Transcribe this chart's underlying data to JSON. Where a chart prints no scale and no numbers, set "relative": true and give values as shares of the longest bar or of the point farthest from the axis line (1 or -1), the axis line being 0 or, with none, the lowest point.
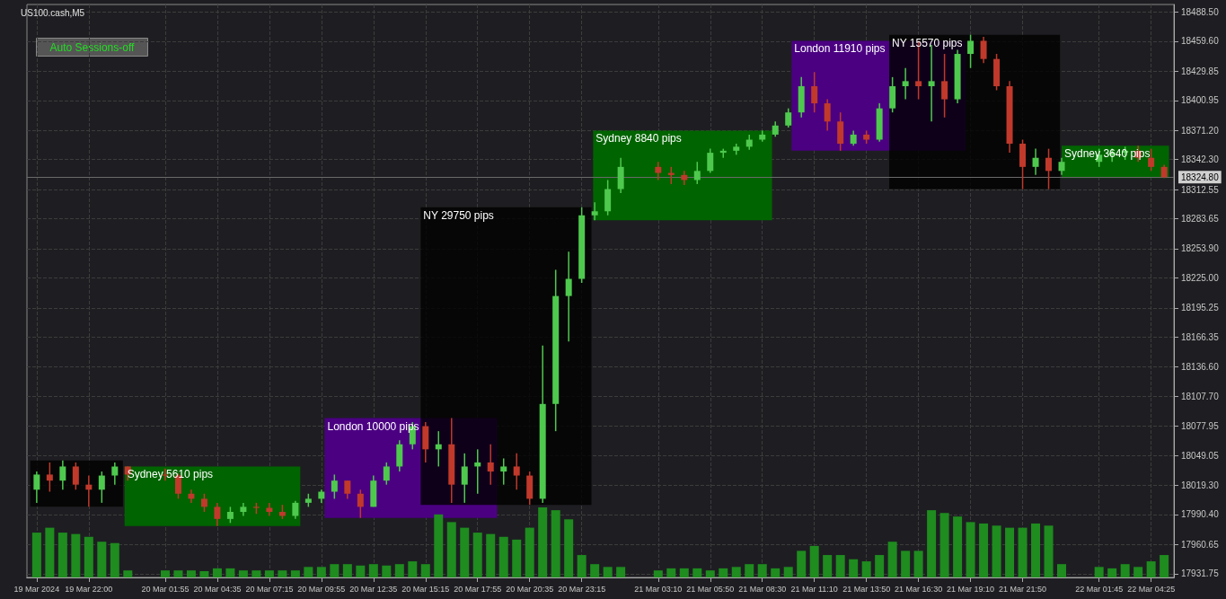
{
  "chart_data": [
    {
      "type": "candlestick",
      "title": "US100.cash,M5",
      "x": [
        "2024-03-19T19:20",
        "2024-03-19T20:00",
        "2024-03-19T20:40",
        "2024-03-19T21:20",
        "2024-03-19T22:00",
        "2024-03-19T22:40",
        "2024-03-19T23:20",
        "2024-03-20T00:00",
        "2024-03-20T01:55",
        "2024-03-20T02:35",
        "2024-03-20T03:15",
        "2024-03-20T03:55",
        "2024-03-20T04:35",
        "2024-03-20T05:15",
        "2024-03-20T05:55",
        "2024-03-20T06:35",
        "2024-03-20T07:15",
        "2024-03-20T07:55",
        "2024-03-20T08:35",
        "2024-03-20T09:15",
        "2024-03-20T09:55",
        "2024-03-20T10:35",
        "2024-03-20T11:15",
        "2024-03-20T11:55",
        "2024-03-20T12:35",
        "2024-03-20T13:15",
        "2024-03-20T13:55",
        "2024-03-20T14:35",
        "2024-03-20T15:15",
        "2024-03-20T15:55",
        "2024-03-20T16:35",
        "2024-03-20T17:15",
        "2024-03-20T17:55",
        "2024-03-20T18:35",
        "2024-03-20T19:15",
        "2024-03-20T19:55",
        "2024-03-20T20:35",
        "2024-03-20T21:15",
        "2024-03-20T21:55",
        "2024-03-20T22:35",
        "2024-03-20T23:15",
        "2024-03-20T23:55",
        "2024-03-21T00:35",
        "2024-03-21T01:15",
        "2024-03-21T03:10",
        "2024-03-21T03:50",
        "2024-03-21T04:30",
        "2024-03-21T05:10",
        "2024-03-21T05:50",
        "2024-03-21T06:30",
        "2024-03-21T07:10",
        "2024-03-21T07:50",
        "2024-03-21T08:30",
        "2024-03-21T09:10",
        "2024-03-21T09:50",
        "2024-03-21T10:30",
        "2024-03-21T11:10",
        "2024-03-21T11:50",
        "2024-03-21T12:30",
        "2024-03-21T13:10",
        "2024-03-21T13:50",
        "2024-03-21T14:30",
        "2024-03-21T15:10",
        "2024-03-21T15:50",
        "2024-03-21T16:30",
        "2024-03-21T17:10",
        "2024-03-21T17:50",
        "2024-03-21T18:30",
        "2024-03-21T19:10",
        "2024-03-21T19:50",
        "2024-03-21T20:30",
        "2024-03-21T21:10",
        "2024-03-21T21:50",
        "2024-03-21T22:30",
        "2024-03-21T23:10",
        "2024-03-21T23:50",
        "2024-03-22T01:45",
        "2024-03-22T02:25",
        "2024-03-22T03:05",
        "2024-03-22T03:45",
        "2024-03-22T04:25",
        "2024-03-22T05:05"
      ],
      "ohlc": [
        [
          18015,
          18033,
          18002,
          18030
        ],
        [
          18030,
          18042,
          18013,
          18024
        ],
        [
          18024,
          18044,
          18015,
          18038
        ],
        [
          18038,
          18042,
          18015,
          18020
        ],
        [
          18020,
          18029,
          17998,
          18015
        ],
        [
          18015,
          18033,
          18002,
          18029
        ],
        [
          18029,
          18042,
          18020,
          18038
        ],
        [
          18038,
          18038,
          18024,
          18030
        ],
        [
          18030,
          18036,
          18024,
          18029
        ],
        [
          18029,
          18031,
          18006,
          18011
        ],
        [
          18011,
          18015,
          18002,
          18006
        ],
        [
          18006,
          18011,
          17993,
          17998
        ],
        [
          17998,
          18002,
          17979,
          17986
        ],
        [
          17986,
          17998,
          17982,
          17993
        ],
        [
          17993,
          18002,
          17989,
          17998
        ],
        [
          17998,
          18002,
          17991,
          17997
        ],
        [
          17997,
          18002,
          17989,
          17993
        ],
        [
          17993,
          18000,
          17986,
          17989
        ],
        [
          17989,
          18004,
          17986,
          18002
        ],
        [
          18002,
          18011,
          17998,
          18006
        ],
        [
          18006,
          18015,
          18002,
          18013
        ],
        [
          18013,
          18030,
          18006,
          18024
        ],
        [
          18024,
          18024,
          18006,
          18011
        ],
        [
          18011,
          18015,
          17987,
          17998
        ],
        [
          17998,
          18029,
          17998,
          18024
        ],
        [
          18024,
          18042,
          18020,
          18038
        ],
        [
          18038,
          18064,
          18033,
          18060
        ],
        [
          18060,
          18082,
          18055,
          18078
        ],
        [
          18078,
          18082,
          18042,
          18055
        ],
        [
          18055,
          18073,
          18038,
          18060
        ],
        [
          18060,
          18086,
          18002,
          18020
        ],
        [
          18020,
          18051,
          18002,
          18038
        ],
        [
          18038,
          18055,
          18011,
          18042
        ],
        [
          18042,
          18060,
          18020,
          18033
        ],
        [
          18033,
          18046,
          18020,
          18038
        ],
        [
          18038,
          18051,
          18015,
          18029
        ],
        [
          18029,
          18033,
          18000,
          18006
        ],
        [
          18006,
          18158,
          18002,
          18100
        ],
        [
          18100,
          18233,
          18073,
          18207
        ],
        [
          18207,
          18251,
          18162,
          18224
        ],
        [
          18224,
          18295,
          18220,
          18287
        ],
        [
          18287,
          18300,
          18282,
          18291
        ],
        [
          18291,
          18322,
          18287,
          18313
        ],
        [
          18313,
          18344,
          18309,
          18335
        ],
        [
          18335,
          18340,
          18322,
          18329
        ],
        [
          18329,
          18335,
          18318,
          18327
        ],
        [
          18327,
          18331,
          18317,
          18322
        ],
        [
          18322,
          18340,
          18318,
          18331
        ],
        [
          18331,
          18353,
          18329,
          18349
        ],
        [
          18349,
          18353,
          18344,
          18351
        ],
        [
          18351,
          18358,
          18347,
          18355
        ],
        [
          18355,
          18367,
          18352,
          18362
        ],
        [
          18362,
          18371,
          18360,
          18367
        ],
        [
          18367,
          18380,
          18365,
          18376
        ],
        [
          18376,
          18393,
          18374,
          18389
        ],
        [
          18389,
          18424,
          18384,
          18415
        ],
        [
          18415,
          18429,
          18389,
          18398
        ],
        [
          18398,
          18402,
          18371,
          18380
        ],
        [
          18380,
          18389,
          18351,
          18358
        ],
        [
          18358,
          18371,
          18356,
          18367
        ],
        [
          18367,
          18371,
          18358,
          18362
        ],
        [
          18362,
          18398,
          18360,
          18393
        ],
        [
          18393,
          18424,
          18389,
          18415
        ],
        [
          18415,
          18433,
          18402,
          18420
        ],
        [
          18420,
          18460,
          18402,
          18415
        ],
        [
          18415,
          18456,
          18380,
          18420
        ],
        [
          18420,
          18447,
          18384,
          18402
        ],
        [
          18402,
          18451,
          18398,
          18447
        ],
        [
          18447,
          18466,
          18433,
          18460
        ],
        [
          18460,
          18464,
          18438,
          18442
        ],
        [
          18442,
          18447,
          18411,
          18415
        ],
        [
          18415,
          18420,
          18349,
          18358
        ],
        [
          18358,
          18362,
          18313,
          18335
        ],
        [
          18335,
          18353,
          18327,
          18344
        ],
        [
          18344,
          18353,
          18313,
          18331
        ],
        [
          18331,
          18344,
          18327,
          18340
        ],
        [
          18340,
          18353,
          18335,
          18347
        ],
        [
          18347,
          18353,
          18340,
          18349
        ],
        [
          18349,
          18355,
          18342,
          18351
        ],
        [
          18351,
          18356,
          18340,
          18344
        ],
        [
          18344,
          18353,
          18331,
          18335
        ],
        [
          18335,
          18337,
          18324,
          18324.8
        ]
      ],
      "colors": [
        "#4ec94e",
        "#c0392b",
        "#4ec94e",
        "#c0392b",
        "#c0392b",
        "#4ec94e",
        "#4ec94e",
        "#c0392b",
        "#c0392b",
        "#c0392b",
        "#c0392b",
        "#c0392b",
        "#c0392b",
        "#4ec94e",
        "#4ec94e",
        "#c0392b",
        "#c0392b",
        "#c0392b",
        "#4ec94e",
        "#4ec94e",
        "#4ec94e",
        "#4ec94e",
        "#c0392b",
        "#c0392b",
        "#4ec94e",
        "#4ec94e",
        "#4ec94e",
        "#4ec94e",
        "#c0392b",
        "#4ec94e",
        "#c0392b",
        "#4ec94e",
        "#4ec94e",
        "#c0392b",
        "#4ec94e",
        "#c0392b",
        "#c0392b",
        "#4ec94e",
        "#4ec94e",
        "#4ec94e",
        "#4ec94e",
        "#4ec94e",
        "#4ec94e",
        "#4ec94e",
        "#c0392b",
        "#c0392b",
        "#c0392b",
        "#4ec94e",
        "#4ec94e",
        "#4ec94e",
        "#4ec94e",
        "#4ec94e",
        "#4ec94e",
        "#4ec94e",
        "#4ec94e",
        "#4ec94e",
        "#c0392b",
        "#c0392b",
        "#c0392b",
        "#4ec94e",
        "#c0392b",
        "#4ec94e",
        "#4ec94e",
        "#4ec94e",
        "#c0392b",
        "#4ec94e",
        "#c0392b",
        "#4ec94e",
        "#4ec94e",
        "#c0392b",
        "#c0392b",
        "#c0392b",
        "#c0392b",
        "#4ec94e",
        "#c0392b",
        "#4ec94e",
        "#4ec94e",
        "#4ec94e",
        "#4ec94e",
        "#c0392b",
        "#c0392b",
        "#c0392b"
      ],
      "xlim": [
        "2024-03-19T18:50",
        "2024-03-22T05:35"
      ],
      "xticks": [
        {
          "value": "2024-03-19T19:20",
          "label": "19 Mar 2024"
        },
        {
          "value": "2024-03-19T22:00",
          "label": "19 Mar 22:00"
        },
        {
          "value": "2024-03-20T01:55",
          "label": "20 Mar 01:55"
        },
        {
          "value": "2024-03-20T04:35",
          "label": "20 Mar 04:35"
        },
        {
          "value": "2024-03-20T07:15",
          "label": "20 Mar 07:15"
        },
        {
          "value": "2024-03-20T09:55",
          "label": "20 Mar 09:55"
        },
        {
          "value": "2024-03-20T12:35",
          "label": "20 Mar 12:35"
        },
        {
          "value": "2024-03-20T15:15",
          "label": "20 Mar 15:15"
        },
        {
          "value": "2024-03-20T17:55",
          "label": "20 Mar 17:55"
        },
        {
          "value": "2024-03-20T20:35",
          "label": "20 Mar 20:35"
        },
        {
          "value": "2024-03-20T23:15",
          "label": "20 Mar 23:15"
        },
        {
          "value": "2024-03-21T03:10",
          "label": "21 Mar 03:10"
        },
        {
          "value": "2024-03-21T05:50",
          "label": "21 Mar 05:50"
        },
        {
          "value": "2024-03-21T08:30",
          "label": "21 Mar 08:30"
        },
        {
          "value": "2024-03-21T11:10",
          "label": "21 Mar 11:10"
        },
        {
          "value": "2024-03-21T13:50",
          "label": "21 Mar 13:50"
        },
        {
          "value": "2024-03-21T16:30",
          "label": "21 Mar 16:30"
        },
        {
          "value": "2024-03-21T19:10",
          "label": "21 Mar 19:10"
        },
        {
          "value": "2024-03-21T21:50",
          "label": "21 Mar 21:50"
        },
        {
          "value": "2024-03-22T01:45",
          "label": "22 Mar 01:45"
        },
        {
          "value": "2024-03-22T04:25",
          "label": "22 Mar 04:25"
        }
      ],
      "ylim": [
        17928,
        18496
      ],
      "yticks": [
        {
          "value": 17931.75,
          "label": "17931.75"
        },
        {
          "value": 17960.65,
          "label": "17960.65"
        },
        {
          "value": 17990.4,
          "label": "17990.40"
        },
        {
          "value": 18019.3,
          "label": "18019.30"
        },
        {
          "value": 18049.05,
          "label": "18049.05"
        },
        {
          "value": 18077.95,
          "label": "18077.95"
        },
        {
          "value": 18107.7,
          "label": "18107.70"
        },
        {
          "value": 18136.6,
          "label": "18136.60"
        },
        {
          "value": 18166.35,
          "label": "18166.35"
        },
        {
          "value": 18195.25,
          "label": "18195.25"
        },
        {
          "value": 18225,
          "label": "18225.00"
        },
        {
          "value": 18253.9,
          "label": "18253.90"
        },
        {
          "value": 18283.65,
          "label": "18283.65"
        },
        {
          "value": 18312.55,
          "label": "18312.55"
        },
        {
          "value": 18342.3,
          "label": "18342.30"
        },
        {
          "value": 18371.2,
          "label": "18371.20"
        },
        {
          "value": 18400.95,
          "label": "18400.95"
        },
        {
          "value": 18429.85,
          "label": "18429.85"
        },
        {
          "value": 18459.6,
          "label": "18459.60"
        },
        {
          "value": 18488.5,
          "label": "18488.50"
        }
      ],
      "bands": [
        {
          "axis": "x",
          "from": "2024-03-19T19:00",
          "to": "2024-03-19T23:45",
          "color": "#000000"
        },
        {
          "axis": "x",
          "from": "2024-03-19T23:50",
          "to": "2024-03-20T08:50",
          "label": "Sydney 5610 pips",
          "color": "#006400"
        },
        {
          "axis": "x",
          "from": "2024-03-20T10:05",
          "to": "2024-03-20T18:55",
          "label": "London 10000 pips",
          "color": "#4b0082"
        },
        {
          "axis": "x",
          "from": "2024-03-20T15:00",
          "to": "2024-03-20T23:45",
          "label": "NY 29750 pips",
          "color": "#000000"
        },
        {
          "axis": "x",
          "from": "2024-03-20T23:50",
          "to": "2024-03-21T09:00",
          "label": "Sydney 8840 pips",
          "color": "#006400"
        },
        {
          "axis": "x",
          "from": "2024-03-21T10:00",
          "to": "2024-03-21T18:55",
          "label": "London 11910 pips",
          "color": "#4b0082"
        },
        {
          "axis": "x",
          "from": "2024-03-21T15:00",
          "to": "2024-03-21T23:45",
          "label": "NY 15570 pips",
          "color": "#000000"
        },
        {
          "axis": "x",
          "from": "2024-03-21T23:50",
          "to": "2024-03-22T05:20",
          "label": "Sydney 3640 pips",
          "color": "#006400"
        }
      ],
      "ref_lines": [
        {
          "axis": "y",
          "value": 18324.8,
          "label": "18324.80",
          "color": "#6a6a6a",
          "line_style": "solid"
        }
      ],
      "annotations": [
        "Auto Sessions-off"
      ],
      "grid": true
    },
    {
      "type": "bar",
      "relative": true,
      "color": "#1e8c1e",
      "x": [
        "2024-03-19T19:20",
        "2024-03-19T20:00",
        "2024-03-19T20:40",
        "2024-03-19T21:20",
        "2024-03-19T22:00",
        "2024-03-19T22:40",
        "2024-03-19T23:20",
        "2024-03-20T00:00",
        "2024-03-20T01:55",
        "2024-03-20T02:35",
        "2024-03-20T03:15",
        "2024-03-20T03:55",
        "2024-03-20T04:35",
        "2024-03-20T05:15",
        "2024-03-20T05:55",
        "2024-03-20T06:35",
        "2024-03-20T07:15",
        "2024-03-20T07:55",
        "2024-03-20T08:35",
        "2024-03-20T09:15",
        "2024-03-20T09:55",
        "2024-03-20T10:35",
        "2024-03-20T11:15",
        "2024-03-20T11:55",
        "2024-03-20T12:35",
        "2024-03-20T13:15",
        "2024-03-20T13:55",
        "2024-03-20T14:35",
        "2024-03-20T15:15",
        "2024-03-20T15:55",
        "2024-03-20T16:35",
        "2024-03-20T17:15",
        "2024-03-20T17:55",
        "2024-03-20T18:35",
        "2024-03-20T19:15",
        "2024-03-20T19:55",
        "2024-03-20T20:35",
        "2024-03-20T21:15",
        "2024-03-20T21:55",
        "2024-03-20T22:35",
        "2024-03-20T23:15",
        "2024-03-20T23:55",
        "2024-03-21T00:35",
        "2024-03-21T01:15",
        "2024-03-21T03:10",
        "2024-03-21T03:50",
        "2024-03-21T04:30",
        "2024-03-21T05:10",
        "2024-03-21T05:50",
        "2024-03-21T06:30",
        "2024-03-21T07:10",
        "2024-03-21T07:50",
        "2024-03-21T08:30",
        "2024-03-21T09:10",
        "2024-03-21T09:50",
        "2024-03-21T10:30",
        "2024-03-21T11:10",
        "2024-03-21T11:50",
        "2024-03-21T12:30",
        "2024-03-21T13:10",
        "2024-03-21T13:50",
        "2024-03-21T14:30",
        "2024-03-21T15:10",
        "2024-03-21T15:50",
        "2024-03-21T16:30",
        "2024-03-21T17:10",
        "2024-03-21T17:50",
        "2024-03-21T18:30",
        "2024-03-21T19:10",
        "2024-03-21T19:50",
        "2024-03-21T20:30",
        "2024-03-21T21:10",
        "2024-03-21T21:50",
        "2024-03-21T22:30",
        "2024-03-21T23:10",
        "2024-03-21T23:50",
        "2024-03-22T01:45",
        "2024-03-22T02:25",
        "2024-03-22T03:05",
        "2024-03-22T03:45",
        "2024-03-22T04:25",
        "2024-03-22T05:05"
      ],
      "xlim": [
        "2024-03-19T18:50",
        "2024-03-22T05:35"
      ],
      "values": [
        0.64,
        0.71,
        0.64,
        0.62,
        0.58,
        0.51,
        0.49,
        0.1,
        0.1,
        0.1,
        0.1,
        0.09,
        0.13,
        0.13,
        0.1,
        0.1,
        0.1,
        0.1,
        0.1,
        0.15,
        0.15,
        0.19,
        0.19,
        0.17,
        0.19,
        0.17,
        0.19,
        0.23,
        0.19,
        0.9,
        0.79,
        0.71,
        0.64,
        0.62,
        0.58,
        0.54,
        0.71,
        1,
        0.96,
        0.83,
        0.32,
        0.19,
        0.15,
        0.15,
        0.1,
        0.13,
        0.13,
        0.13,
        0.1,
        0.13,
        0.15,
        0.19,
        0.19,
        0.13,
        0.15,
        0.38,
        0.45,
        0.32,
        0.32,
        0.26,
        0.23,
        0.32,
        0.51,
        0.38,
        0.38,
        0.96,
        0.92,
        0.87,
        0.79,
        0.77,
        0.74,
        0.71,
        0.71,
        0.77,
        0.74,
        0.19,
        0.15,
        0.13,
        0.19,
        0.15,
        0.23,
        0.32
      ]
    }
  ]
}
